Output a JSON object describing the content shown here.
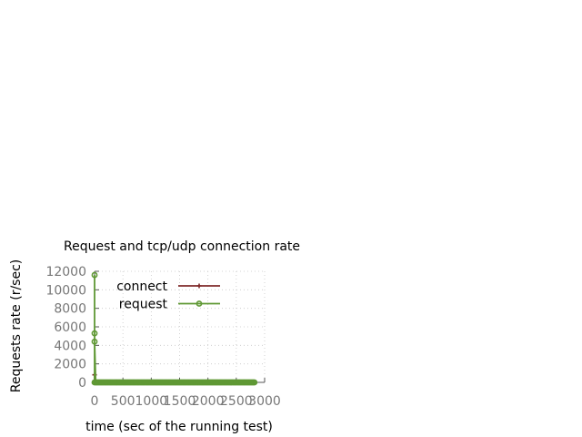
{
  "chart_data": {
    "type": "line",
    "title": "Request and tcp/udp connection rate",
    "xlabel": "time (sec of the running test)",
    "ylabel": "Requests rate (r/sec)",
    "xlim": [
      0,
      3000
    ],
    "ylim": [
      0,
      12000
    ],
    "x_ticks": [
      0,
      500,
      1000,
      1500,
      2000,
      2500,
      3000
    ],
    "y_ticks": [
      0,
      2000,
      4000,
      6000,
      8000,
      10000,
      12000
    ],
    "grid": true,
    "legend_position": "top-right",
    "x_start": 0,
    "x_end": 2820,
    "x_step": 20,
    "series": [
      {
        "name": "connect",
        "color": "#7f2a2a",
        "marker": "plus",
        "lead_in": [
          [
            0,
            0
          ],
          [
            0,
            820
          ],
          [
            20,
            0
          ]
        ],
        "steady_value": 0
      },
      {
        "name": "request",
        "color": "#5f9834",
        "marker": "circle",
        "lead_in": [
          [
            0,
            0
          ],
          [
            0,
            11600
          ],
          [
            0,
            5300
          ],
          [
            0,
            4400
          ],
          [
            20,
            0
          ]
        ],
        "steady_value": 0
      }
    ]
  }
}
